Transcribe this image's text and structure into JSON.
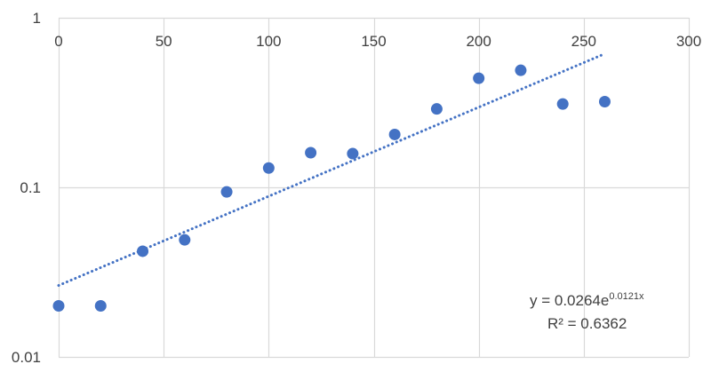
{
  "chart_data": {
    "type": "scatter",
    "title": "",
    "xlabel": "",
    "ylabel": "",
    "x_axis": {
      "min": 0,
      "max": 300,
      "ticks": [
        0,
        50,
        100,
        150,
        200,
        250,
        300
      ],
      "tick_labels": [
        "0",
        "50",
        "100",
        "150",
        "200",
        "250",
        "300"
      ],
      "position": "top"
    },
    "y_axis": {
      "scale": "log",
      "min": 0.01,
      "max": 1,
      "ticks": [
        0.01,
        0.1,
        1
      ],
      "tick_labels": [
        "0.01",
        "0.1",
        "1"
      ]
    },
    "grid": true,
    "legend": "none",
    "series": [
      {
        "color": "#4472C4",
        "points": [
          {
            "x": 0,
            "y": 0.02
          },
          {
            "x": 20,
            "y": 0.02
          },
          {
            "x": 40,
            "y": 0.042
          },
          {
            "x": 60,
            "y": 0.049
          },
          {
            "x": 80,
            "y": 0.094
          },
          {
            "x": 100,
            "y": 0.13
          },
          {
            "x": 120,
            "y": 0.16
          },
          {
            "x": 140,
            "y": 0.158
          },
          {
            "x": 160,
            "y": 0.205
          },
          {
            "x": 180,
            "y": 0.29
          },
          {
            "x": 200,
            "y": 0.44
          },
          {
            "x": 220,
            "y": 0.49
          },
          {
            "x": 240,
            "y": 0.31
          },
          {
            "x": 260,
            "y": 0.32
          }
        ]
      }
    ],
    "trendline": {
      "type": "exponential",
      "style": "dotted",
      "color": "#4472C4",
      "a": 0.0264,
      "b": 0.0121,
      "x_range": [
        0,
        260
      ],
      "equation_text": {
        "prefix": "y = 0.0264e",
        "exponent": "0.0121x"
      },
      "r_squared_text": "R² = 0.6362"
    },
    "colors": {
      "grid": "#d9d9d9",
      "tick_text": "#404040",
      "marker": "#4472C4"
    }
  }
}
